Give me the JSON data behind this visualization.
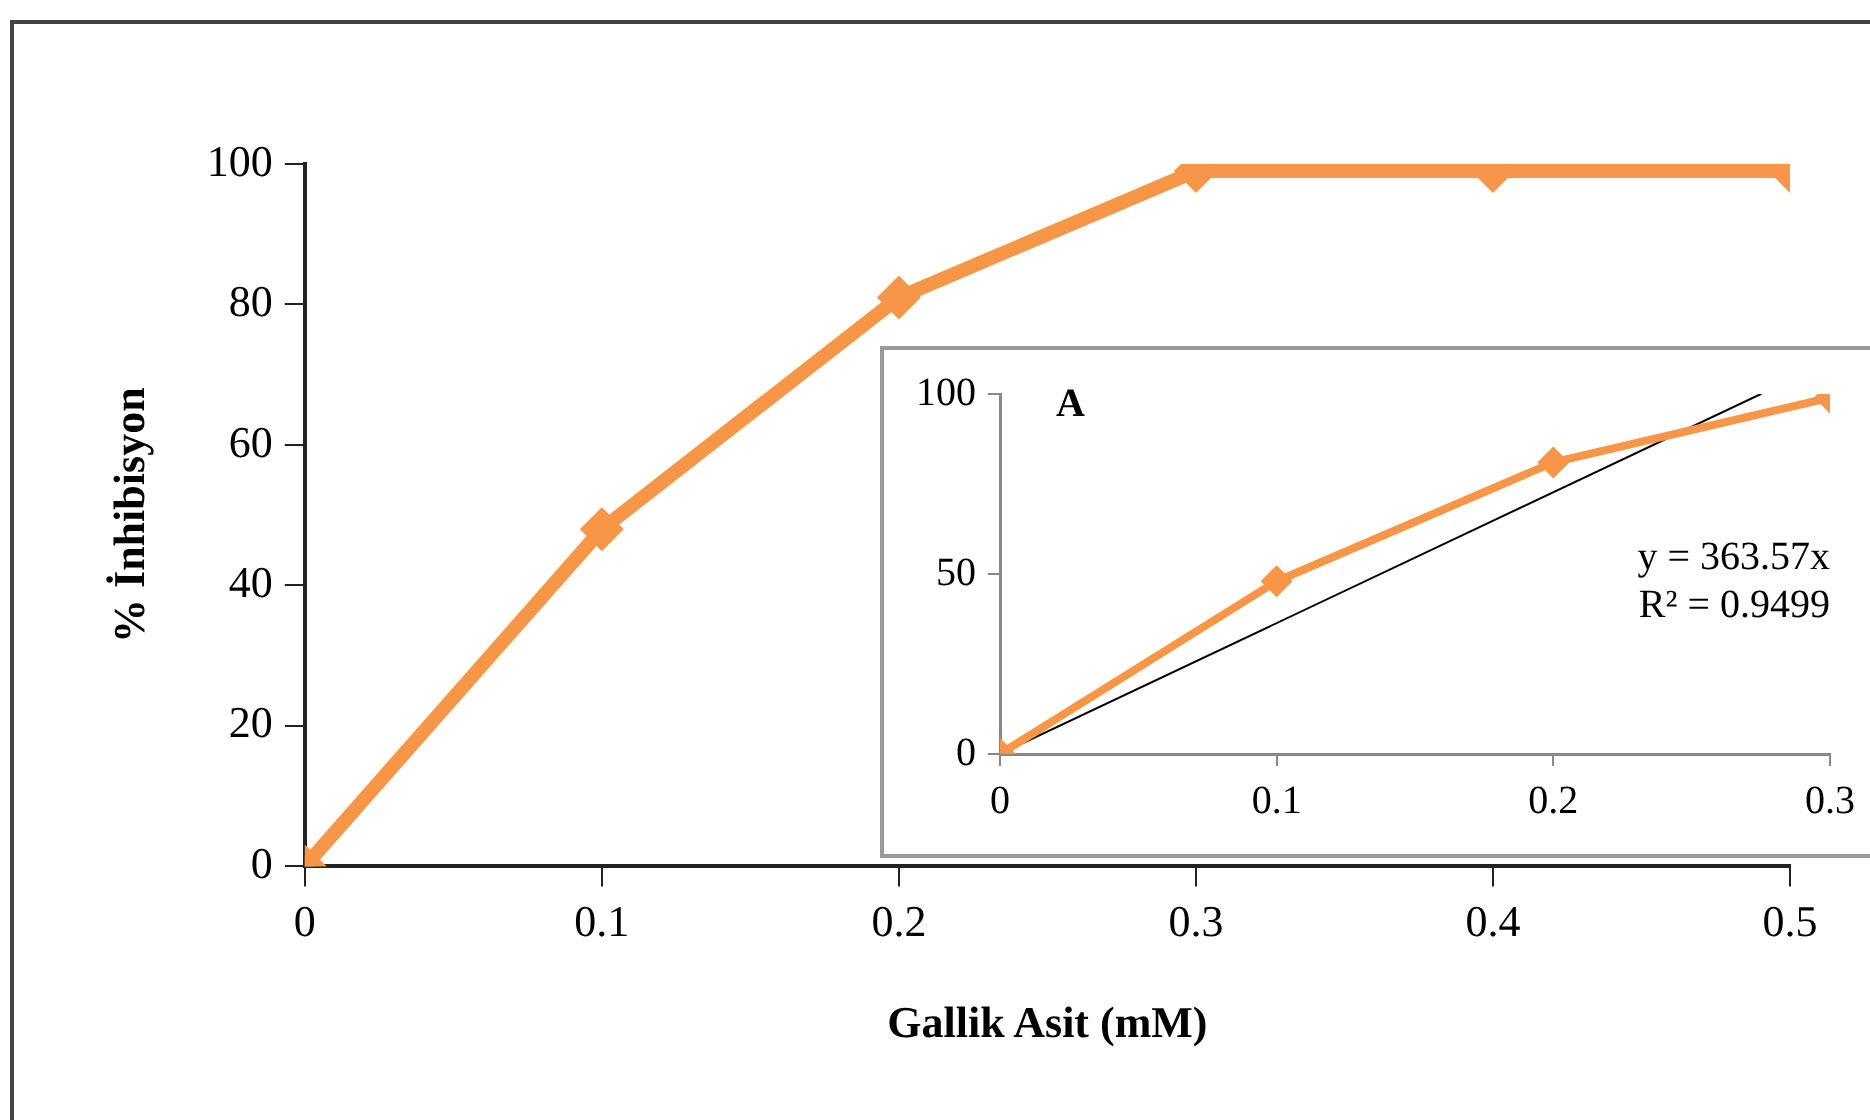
{
  "chart_data": [
    {
      "type": "line",
      "xlabel": "Gallik Asit (mM)",
      "ylabel": "% İnhibisyon",
      "x": [
        0,
        0.1,
        0.2,
        0.3,
        0.4,
        0.5
      ],
      "xlim": [
        0,
        0.5
      ],
      "xticks": [
        0,
        0.1,
        0.2,
        0.3,
        0.4,
        0.5
      ],
      "ylim": [
        0,
        100
      ],
      "yticks": [
        0,
        20,
        40,
        60,
        80,
        100
      ],
      "marker": "diamond",
      "line_style": "solid",
      "grid": false,
      "legend": false,
      "series": [
        {
          "color": "#f79646",
          "values": [
            0,
            48,
            81,
            99,
            99,
            99
          ]
        }
      ]
    },
    {
      "type": "line",
      "x": [
        0,
        0.1,
        0.2,
        0.3
      ],
      "xlim": [
        0,
        0.3
      ],
      "xticks": [
        0,
        0.1,
        0.2,
        0.3
      ],
      "ylim": [
        0,
        100
      ],
      "yticks": [
        0,
        50,
        100
      ],
      "marker": "diamond",
      "line_style": "solid",
      "grid": false,
      "legend": false,
      "annotations": [
        "A",
        "y = 363.57x",
        "R² = 0.9499"
      ],
      "series": [
        {
          "color": "#f79646",
          "values": [
            0,
            48,
            81,
            99
          ]
        },
        {
          "type": "line",
          "color": "#000000",
          "marker": "none",
          "x": [
            0,
            0.275
          ],
          "values": [
            0,
            100
          ]
        }
      ]
    }
  ]
}
